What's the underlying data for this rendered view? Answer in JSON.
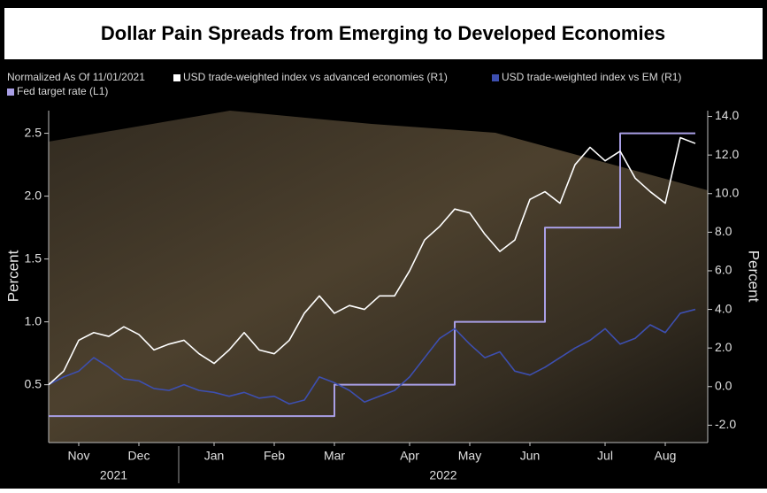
{
  "chart_data": {
    "type": "line",
    "title": "Dollar Pain Spreads from Emerging to Developed Economies",
    "subtitle": "Normalized As Of 11/01/2021",
    "y_label": "Percent",
    "y2_label": "Percent",
    "categories": [
      null,
      null,
      "Nov",
      null,
      null,
      null,
      "Dec",
      null,
      null,
      null,
      null,
      "Jan",
      null,
      null,
      null,
      "Feb",
      null,
      null,
      null,
      "Mar",
      null,
      null,
      null,
      null,
      "Apr",
      null,
      null,
      null,
      "May",
      null,
      null,
      null,
      "Jun",
      null,
      null,
      null,
      null,
      "Jul",
      null,
      null,
      null,
      "Aug",
      null,
      null
    ],
    "years": [
      "2021",
      "2022"
    ],
    "ylim": [
      0.04,
      2.68
    ],
    "yticks": [
      0.5,
      {
        "value": 1.0,
        "label": "1.0"
      },
      1.5,
      {
        "value": 2.0,
        "label": "2.0"
      },
      2.5
    ],
    "y2lim": [
      -2.9,
      14.3
    ],
    "y2ticks": [
      {
        "value": -2,
        "label": "-2.0"
      },
      {
        "value": 0,
        "label": "0.0"
      },
      {
        "value": 2,
        "label": "2.0"
      },
      {
        "value": 4,
        "label": "4.0"
      },
      {
        "value": 6,
        "label": "6.0"
      },
      {
        "value": 8,
        "label": "8.0"
      },
      {
        "value": 10,
        "label": "10.0"
      },
      {
        "value": 12,
        "label": "12.0"
      },
      {
        "value": 14,
        "label": "14.0"
      }
    ],
    "series": [
      {
        "name": "USD trade-weighted index vs advanced economies (R1)",
        "color": "#ffffff",
        "axis": "y2",
        "values": [
          0.1,
          0.8,
          2.4,
          2.8,
          2.6,
          3.1,
          2.7,
          1.9,
          2.2,
          2.4,
          1.7,
          1.2,
          1.9,
          2.8,
          1.9,
          1.7,
          2.4,
          3.8,
          4.7,
          3.8,
          4.2,
          4.0,
          4.7,
          4.7,
          6.0,
          7.6,
          8.3,
          9.2,
          9.0,
          7.9,
          7.0,
          7.6,
          9.7,
          10.1,
          9.5,
          11.5,
          12.4,
          11.7,
          12.2,
          10.8,
          10.1,
          9.5,
          12.9,
          12.6
        ]
      },
      {
        "name": "USD trade-weighted index vs EM (R1)",
        "color": "#3d4fb0",
        "axis": "y2",
        "values": [
          0.1,
          0.5,
          0.8,
          1.5,
          1.0,
          0.4,
          0.3,
          -0.1,
          -0.2,
          0.1,
          -0.2,
          -0.3,
          -0.5,
          -0.3,
          -0.6,
          -0.5,
          -0.9,
          -0.7,
          0.5,
          0.2,
          -0.2,
          -0.8,
          -0.5,
          -0.2,
          0.5,
          1.5,
          2.5,
          3.0,
          2.2,
          1.5,
          1.8,
          0.8,
          0.6,
          1.0,
          1.5,
          2.0,
          2.4,
          3.0,
          2.2,
          2.5,
          3.2,
          2.8,
          3.8,
          4.0
        ]
      },
      {
        "name": "Fed target rate (L1)",
        "color": "#a99fe6",
        "axis": "y",
        "step": true,
        "values": [
          0.25,
          0.25,
          0.25,
          0.25,
          0.25,
          0.25,
          0.25,
          0.25,
          0.25,
          0.25,
          0.25,
          0.25,
          0.25,
          0.25,
          0.25,
          0.25,
          0.25,
          0.25,
          0.25,
          0.5,
          0.5,
          0.5,
          0.5,
          0.5,
          0.5,
          0.5,
          0.5,
          1.0,
          1.0,
          1.0,
          1.0,
          1.0,
          1.0,
          1.75,
          1.75,
          1.75,
          1.75,
          1.75,
          2.5,
          2.5,
          2.5,
          2.5,
          2.5,
          2.5
        ]
      }
    ]
  }
}
